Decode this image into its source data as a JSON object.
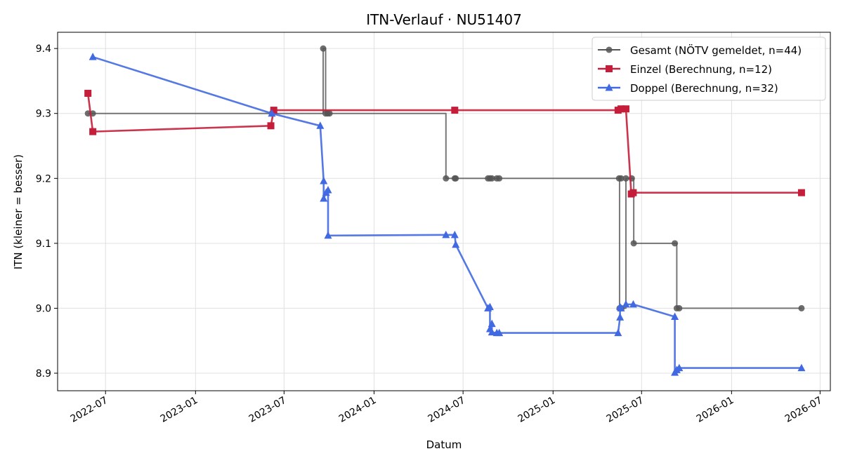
{
  "chart_data": {
    "type": "line",
    "title": "ITN-Verlauf · NU51407",
    "xlabel": "Datum",
    "ylabel": "ITN  (kleiner = besser)",
    "xlim": [
      "2022-03-25",
      "2026-07-22"
    ],
    "ylim": [
      8.873,
      9.425
    ],
    "x_ticks": [
      "2022-07",
      "2023-01",
      "2023-07",
      "2024-01",
      "2024-07",
      "2025-01",
      "2025-07",
      "2026-01",
      "2026-07"
    ],
    "y_ticks": [
      "8.9",
      "9.0",
      "9.1",
      "9.2",
      "9.3",
      "9.4"
    ],
    "grid": true,
    "legend_position": "top-right",
    "series": [
      {
        "name": "Gesamt (NÖTV gemeldet, n=44)",
        "color": "#555555",
        "marker": "circle",
        "step": true,
        "points": [
          [
            "2022-05-26",
            9.3
          ],
          [
            "2022-06-05",
            9.3
          ],
          [
            "2023-06-06",
            9.3
          ],
          [
            "2023-09-19",
            9.4
          ],
          [
            "2023-09-24",
            9.3
          ],
          [
            "2023-09-28",
            9.3
          ],
          [
            "2023-10-02",
            9.3
          ],
          [
            "2024-05-27",
            9.2
          ],
          [
            "2024-06-14",
            9.2
          ],
          [
            "2024-06-16",
            9.2
          ],
          [
            "2024-08-21",
            9.2
          ],
          [
            "2024-08-25",
            9.2
          ],
          [
            "2024-08-29",
            9.2
          ],
          [
            "2024-09-08",
            9.2
          ],
          [
            "2024-09-13",
            9.2
          ],
          [
            "2025-05-16",
            9.2
          ],
          [
            "2025-05-20",
            9.2
          ],
          [
            "2025-05-17",
            9.0
          ],
          [
            "2025-05-21",
            9.0
          ],
          [
            "2025-05-30",
            9.2
          ],
          [
            "2025-06-11",
            9.2
          ],
          [
            "2025-06-15",
            9.1
          ],
          [
            "2025-09-07",
            9.1
          ],
          [
            "2025-09-11",
            9.0
          ],
          [
            "2025-09-16",
            9.0
          ],
          [
            "2026-05-24",
            9.0
          ]
        ]
      },
      {
        "name": "Einzel (Berechnung, n=12)",
        "color": "#c41e3a",
        "marker": "square",
        "points": [
          [
            "2022-05-26",
            9.331
          ],
          [
            "2022-06-05",
            9.272
          ],
          [
            "2023-06-04",
            9.281
          ],
          [
            "2023-06-10",
            9.305
          ],
          [
            "2024-06-14",
            9.305
          ],
          [
            "2025-05-14",
            9.305
          ],
          [
            "2025-05-20",
            9.307
          ],
          [
            "2025-05-30",
            9.307
          ],
          [
            "2025-06-10",
            9.176
          ],
          [
            "2025-06-14",
            9.178
          ],
          [
            "2026-05-24",
            9.178
          ]
        ]
      },
      {
        "name": "Doppel (Berechnung, n=32)",
        "color": "#4169e1",
        "marker": "triangle",
        "points": [
          [
            "2022-06-05",
            9.387
          ],
          [
            "2023-06-06",
            9.3
          ],
          [
            "2023-09-13",
            9.281
          ],
          [
            "2023-09-20",
            9.196
          ],
          [
            "2023-09-20",
            9.169
          ],
          [
            "2023-09-25",
            9.178
          ],
          [
            "2023-09-29",
            9.182
          ],
          [
            "2023-09-29",
            9.112
          ],
          [
            "2024-05-27",
            9.113
          ],
          [
            "2024-06-14",
            9.113
          ],
          [
            "2024-06-16",
            9.098
          ],
          [
            "2024-08-21",
            9.0
          ],
          [
            "2024-08-25",
            9.002
          ],
          [
            "2024-08-25",
            8.968
          ],
          [
            "2024-08-29",
            8.976
          ],
          [
            "2024-08-29",
            8.963
          ],
          [
            "2024-09-08",
            8.962
          ],
          [
            "2024-09-13",
            8.962
          ],
          [
            "2025-05-14",
            8.962
          ],
          [
            "2025-05-18",
            8.986
          ],
          [
            "2025-05-18",
            9.002
          ],
          [
            "2025-05-20",
            9.0
          ],
          [
            "2025-05-30",
            9.006
          ],
          [
            "2025-06-14",
            9.006
          ],
          [
            "2025-09-07",
            8.987
          ],
          [
            "2025-09-07",
            8.901
          ],
          [
            "2025-09-11",
            8.905
          ],
          [
            "2025-09-16",
            8.908
          ],
          [
            "2026-05-24",
            8.908
          ]
        ]
      }
    ]
  }
}
